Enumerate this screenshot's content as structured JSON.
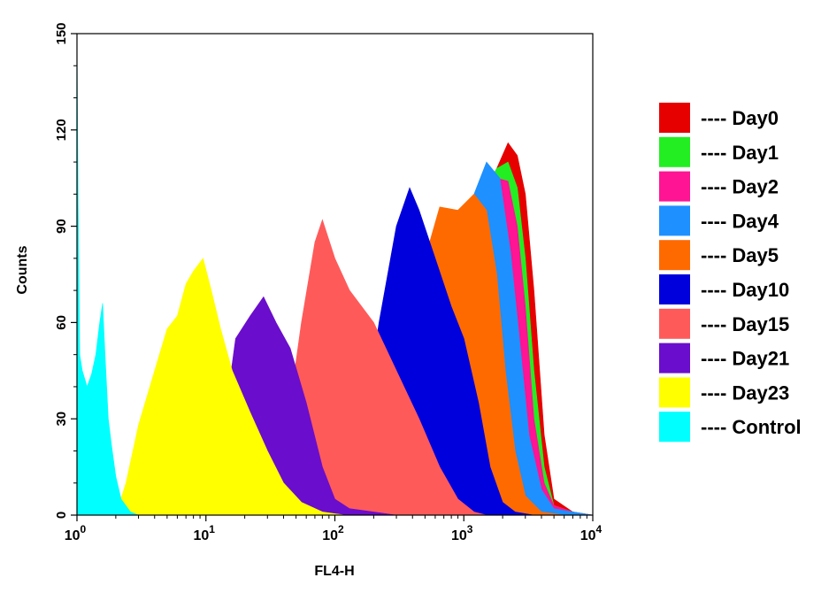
{
  "chart_data": {
    "type": "area",
    "title": "",
    "xlabel": "FL4-H",
    "ylabel": "Counts",
    "x_scale": "log",
    "xlim": [
      1,
      10000
    ],
    "ylim": [
      0,
      150
    ],
    "x_ticks": [
      {
        "value": 1,
        "base": "10",
        "exp": "0"
      },
      {
        "value": 10,
        "base": "10",
        "exp": "1"
      },
      {
        "value": 100,
        "base": "10",
        "exp": "2"
      },
      {
        "value": 1000,
        "base": "10",
        "exp": "3"
      },
      {
        "value": 10000,
        "base": "10",
        "exp": "4"
      }
    ],
    "y_ticks": [
      {
        "value": 0,
        "label": "0"
      },
      {
        "value": 30,
        "label": "30"
      },
      {
        "value": 60,
        "label": "60"
      },
      {
        "value": 90,
        "label": "90"
      },
      {
        "value": 120,
        "label": "120"
      },
      {
        "value": 150,
        "label": "150"
      }
    ],
    "grid": false,
    "legend_position": "right",
    "series": [
      {
        "name": "---- Day0",
        "color": "#e60000",
        "points": [
          [
            150,
            0
          ],
          [
            400,
            10
          ],
          [
            700,
            50
          ],
          [
            1000,
            85
          ],
          [
            1400,
            100
          ],
          [
            1800,
            108
          ],
          [
            2200,
            116
          ],
          [
            2600,
            112
          ],
          [
            3000,
            100
          ],
          [
            3500,
            70
          ],
          [
            4200,
            25
          ],
          [
            5000,
            5
          ],
          [
            7000,
            1
          ],
          [
            10000,
            0
          ]
        ]
      },
      {
        "name": "---- Day1",
        "color": "#22ee22",
        "points": [
          [
            150,
            0
          ],
          [
            400,
            10
          ],
          [
            700,
            50
          ],
          [
            1000,
            85
          ],
          [
            1400,
            100
          ],
          [
            1800,
            108
          ],
          [
            2200,
            110
          ],
          [
            2600,
            102
          ],
          [
            3000,
            80
          ],
          [
            3500,
            45
          ],
          [
            4200,
            15
          ],
          [
            5000,
            3
          ],
          [
            7000,
            1
          ],
          [
            10000,
            0
          ]
        ]
      },
      {
        "name": "---- Day2",
        "color": "#ff1493",
        "points": [
          [
            150,
            0
          ],
          [
            400,
            10
          ],
          [
            700,
            50
          ],
          [
            1000,
            85
          ],
          [
            1400,
            100
          ],
          [
            1800,
            105
          ],
          [
            2200,
            104
          ],
          [
            2600,
            90
          ],
          [
            3000,
            65
          ],
          [
            3500,
            30
          ],
          [
            4200,
            10
          ],
          [
            5000,
            3
          ],
          [
            7000,
            1
          ],
          [
            10000,
            0
          ]
        ]
      },
      {
        "name": "---- Day4",
        "color": "#1e90ff",
        "points": [
          [
            120,
            0
          ],
          [
            300,
            8
          ],
          [
            600,
            50
          ],
          [
            900,
            85
          ],
          [
            1200,
            100
          ],
          [
            1500,
            110
          ],
          [
            1900,
            105
          ],
          [
            2300,
            82
          ],
          [
            2700,
            55
          ],
          [
            3200,
            25
          ],
          [
            4000,
            8
          ],
          [
            5000,
            2
          ],
          [
            7000,
            1
          ],
          [
            10000,
            0
          ]
        ]
      },
      {
        "name": "---- Day5",
        "color": "#ff6a00",
        "points": [
          [
            80,
            0
          ],
          [
            250,
            10
          ],
          [
            400,
            50
          ],
          [
            500,
            80
          ],
          [
            650,
            96
          ],
          [
            900,
            95
          ],
          [
            1200,
            100
          ],
          [
            1500,
            95
          ],
          [
            1800,
            75
          ],
          [
            2100,
            45
          ],
          [
            2500,
            20
          ],
          [
            3000,
            6
          ],
          [
            4000,
            1
          ],
          [
            6000,
            0
          ]
        ]
      },
      {
        "name": "---- Day10",
        "color": "#0000dd",
        "points": [
          [
            60,
            0
          ],
          [
            150,
            15
          ],
          [
            220,
            60
          ],
          [
            300,
            90
          ],
          [
            380,
            102
          ],
          [
            450,
            95
          ],
          [
            600,
            80
          ],
          [
            800,
            65
          ],
          [
            1000,
            55
          ],
          [
            1300,
            35
          ],
          [
            1600,
            15
          ],
          [
            2000,
            4
          ],
          [
            2500,
            1
          ],
          [
            3500,
            0
          ]
        ]
      },
      {
        "name": "---- Day15",
        "color": "#ff5a5a",
        "points": [
          [
            25,
            0
          ],
          [
            40,
            20
          ],
          [
            55,
            60
          ],
          [
            70,
            85
          ],
          [
            80,
            92
          ],
          [
            100,
            80
          ],
          [
            130,
            70
          ],
          [
            200,
            60
          ],
          [
            300,
            45
          ],
          [
            450,
            30
          ],
          [
            650,
            15
          ],
          [
            900,
            5
          ],
          [
            1200,
            1
          ],
          [
            1500,
            0
          ]
        ]
      },
      {
        "name": "---- Day21",
        "color": "#6a0dcc",
        "points": [
          [
            10,
            0
          ],
          [
            14,
            30
          ],
          [
            17,
            55
          ],
          [
            22,
            62
          ],
          [
            28,
            68
          ],
          [
            35,
            60
          ],
          [
            45,
            52
          ],
          [
            60,
            35
          ],
          [
            80,
            15
          ],
          [
            100,
            5
          ],
          [
            130,
            2
          ],
          [
            200,
            1
          ],
          [
            300,
            0
          ]
        ]
      },
      {
        "name": "---- Day23",
        "color": "#ffff00",
        "points": [
          [
            2,
            0
          ],
          [
            2.4,
            10
          ],
          [
            3,
            28
          ],
          [
            4,
            45
          ],
          [
            5,
            58
          ],
          [
            6,
            62
          ],
          [
            7,
            72
          ],
          [
            8,
            76
          ],
          [
            9.5,
            80
          ],
          [
            11,
            70
          ],
          [
            13,
            58
          ],
          [
            16,
            45
          ],
          [
            22,
            32
          ],
          [
            30,
            20
          ],
          [
            40,
            10
          ],
          [
            55,
            4
          ],
          [
            80,
            1
          ],
          [
            120,
            0
          ]
        ]
      },
      {
        "name": "---- Control",
        "color": "#00ffff",
        "points": [
          [
            1,
            150
          ],
          [
            1.02,
            100
          ],
          [
            1.05,
            50
          ],
          [
            1.1,
            45
          ],
          [
            1.2,
            40
          ],
          [
            1.3,
            44
          ],
          [
            1.4,
            50
          ],
          [
            1.5,
            60
          ],
          [
            1.58,
            66
          ],
          [
            1.65,
            50
          ],
          [
            1.75,
            30
          ],
          [
            1.85,
            22
          ],
          [
            2.0,
            12
          ],
          [
            2.2,
            5
          ],
          [
            2.6,
            1
          ],
          [
            3,
            0
          ]
        ]
      }
    ]
  }
}
